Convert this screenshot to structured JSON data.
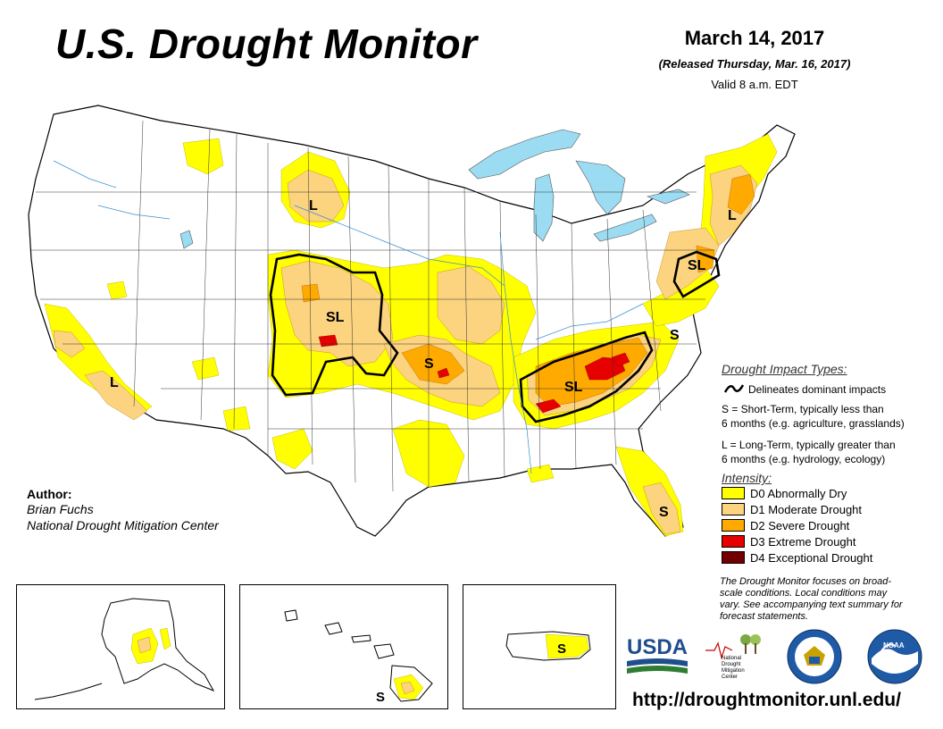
{
  "header": {
    "title": "U.S. Drought Monitor",
    "date": "March 14, 2017",
    "released": "(Released Thursday, Mar. 16, 2017)",
    "valid": "Valid 8 a.m. EDT"
  },
  "author": {
    "heading": "Author:",
    "name": "Brian Fuchs",
    "org": "National Drought Mitigation Center"
  },
  "impact_legend": {
    "heading": "Drought Impact Types:",
    "delineates": "Delineates dominant impacts",
    "short_term_1": "S = Short-Term, typically less than",
    "short_term_2": "6 months (e.g. agriculture, grasslands)",
    "long_term_1": "L = Long-Term, typically greater than",
    "long_term_2": "6 months (e.g. hydrology, ecology)"
  },
  "intensity_legend": {
    "heading": "Intensity:",
    "items": [
      {
        "label": "D0 Abnormally Dry",
        "color": "#ffff00"
      },
      {
        "label": "D1 Moderate Drought",
        "color": "#fcd37f"
      },
      {
        "label": "D2 Severe Drought",
        "color": "#ffaa00"
      },
      {
        "label": "D3 Extreme Drought",
        "color": "#e60000"
      },
      {
        "label": "D4 Exceptional Drought",
        "color": "#730000"
      }
    ]
  },
  "note": {
    "line1": "The Drought Monitor focuses on broad-",
    "line2": "scale conditions. Local conditions may",
    "line3": "vary. See accompanying text summary for",
    "line4": "forecast statements."
  },
  "map_labels": {
    "l_montana": "L",
    "sl_colorado": "SL",
    "s_oklahoma": "S",
    "l_california": "L",
    "sl_southeast": "SL",
    "s_virginia": "S",
    "sl_midatlantic": "SL",
    "l_newengland": "L",
    "s_florida": "S",
    "s_hawaii": "S",
    "s_puertorico": "S"
  },
  "logos": {
    "usda": "USDA",
    "ndmc_1": "National",
    "ndmc_2": "Drought",
    "ndmc_3": "Mitigation",
    "ndmc_4": "Center",
    "noaa": "NOAA"
  },
  "url": "http://droughtmonitor.unl.edu/"
}
